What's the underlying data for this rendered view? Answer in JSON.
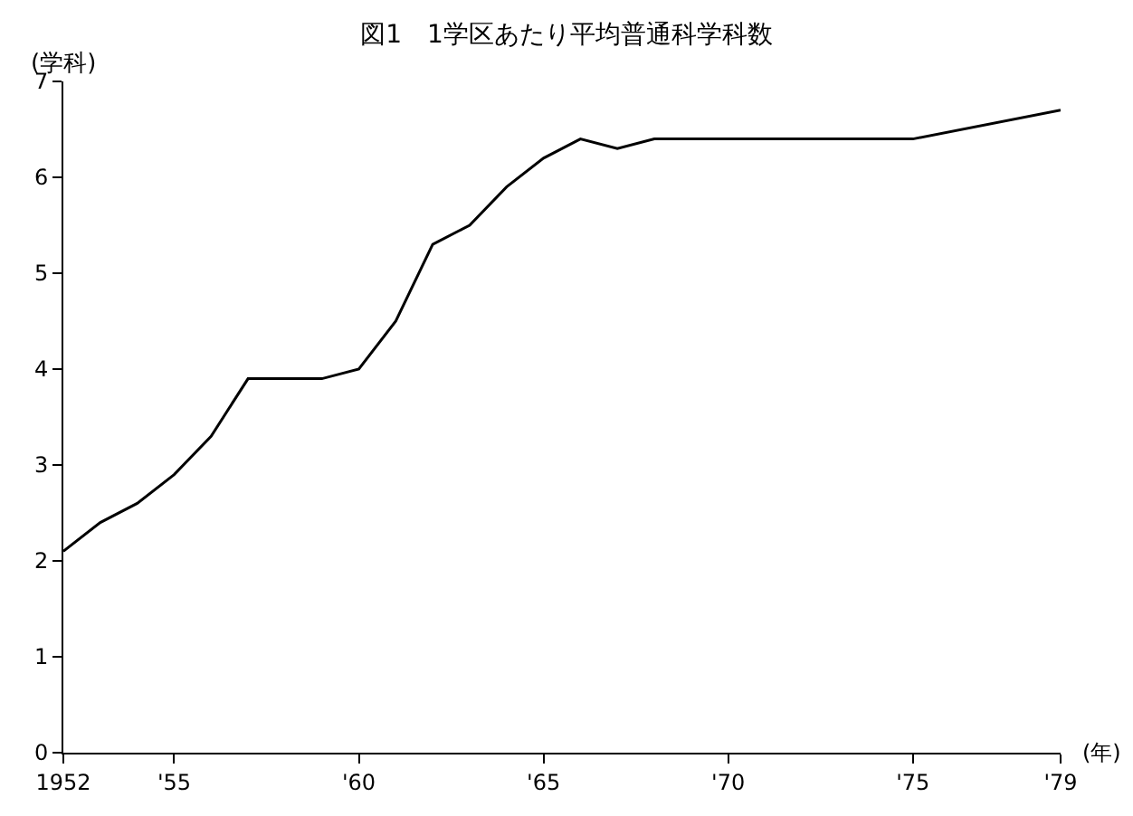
{
  "chart_data": {
    "type": "line",
    "title": "図1　1学区あたり平均普通科学科数",
    "ylabel": "(学科)",
    "xlabel": "(年)",
    "x": [
      1952,
      1953,
      1954,
      1955,
      1956,
      1957,
      1959,
      1960,
      1961,
      1962,
      1963,
      1964,
      1965,
      1966,
      1967,
      1968,
      1975,
      1979
    ],
    "series": [
      {
        "color": "#000000",
        "values": [
          2.1,
          2.4,
          2.6,
          2.9,
          3.3,
          3.9,
          3.9,
          4.0,
          4.5,
          5.3,
          5.5,
          5.9,
          6.2,
          6.4,
          6.3,
          6.4,
          6.4,
          6.7
        ]
      }
    ],
    "xlim": [
      1952,
      1979
    ],
    "xticks": [
      {
        "value": 1952,
        "label": "1952"
      },
      {
        "value": 1955,
        "label": "'55"
      },
      {
        "value": 1960,
        "label": "'60"
      },
      {
        "value": 1965,
        "label": "'65"
      },
      {
        "value": 1970,
        "label": "'70"
      },
      {
        "value": 1975,
        "label": "'75"
      },
      {
        "value": 1979,
        "label": "'79"
      }
    ],
    "ylim": [
      0,
      7
    ],
    "yticks": [
      0,
      1,
      2,
      3,
      4,
      5,
      6,
      7
    ],
    "marker": "none",
    "line_style": "solid"
  }
}
